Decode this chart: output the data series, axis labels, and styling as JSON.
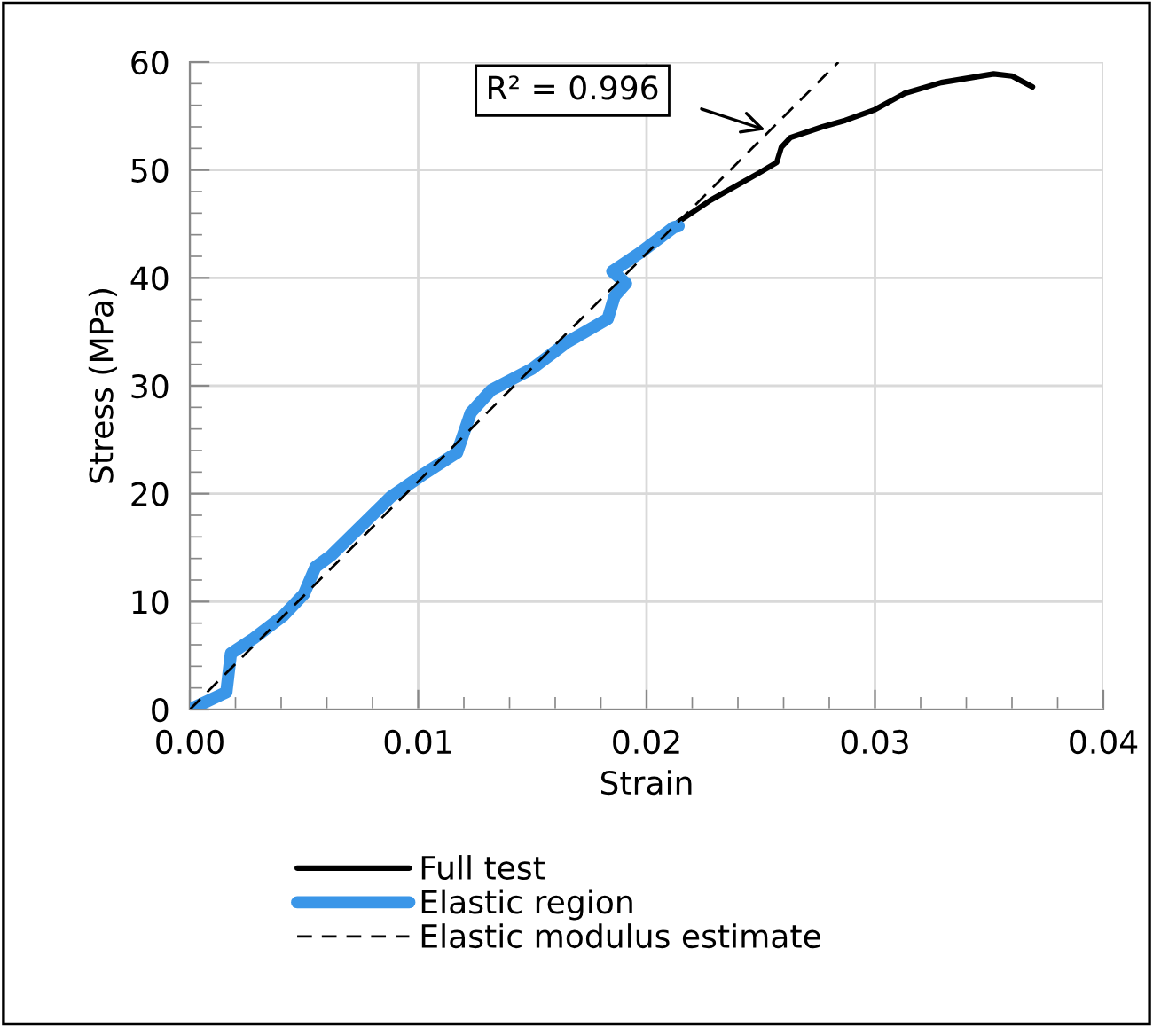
{
  "chart_data": {
    "type": "line",
    "xlabel": "Strain",
    "ylabel": "Stress (MPa)",
    "xlim": [
      0,
      0.04
    ],
    "ylim": [
      0,
      60
    ],
    "xticks": [
      {
        "value": 0,
        "label": "0.00"
      },
      {
        "value": 0.01,
        "label": "0.01"
      },
      {
        "value": 0.02,
        "label": "0.02"
      },
      {
        "value": 0.03,
        "label": "0.03"
      },
      {
        "value": 0.04,
        "label": "0.04"
      }
    ],
    "yticks": [
      0,
      10,
      20,
      30,
      40,
      50,
      60
    ],
    "grid": true,
    "legend": "bottom",
    "marker": "none",
    "series": [
      {
        "name": "Full test",
        "color": "#000000",
        "line_style": "solid",
        "x": [
          0.0212,
          0.0214,
          0.0228,
          0.0249,
          0.0257,
          0.0259,
          0.0263,
          0.0277,
          0.0287,
          0.03,
          0.0313,
          0.0329,
          0.0352,
          0.036,
          0.0369
        ],
        "values": [
          44.7,
          45.2,
          47.2,
          49.7,
          50.7,
          52.1,
          53.0,
          54.0,
          54.6,
          55.6,
          57.1,
          58.1,
          58.9,
          58.7,
          57.7
        ]
      },
      {
        "name": "Elastic region",
        "color": "#3a96e8",
        "line_style": "solid",
        "x": [
          0,
          0.0016,
          0.0018,
          0.0028,
          0.0041,
          0.005,
          0.0055,
          0.0062,
          0.0088,
          0.0103,
          0.0117,
          0.0123,
          0.0132,
          0.015,
          0.0165,
          0.0183,
          0.0186,
          0.0191,
          0.0185,
          0.0197,
          0.0212,
          0.0214
        ],
        "values": [
          0,
          1.6,
          5.2,
          6.6,
          8.7,
          10.7,
          13.2,
          14.3,
          19.7,
          21.9,
          23.8,
          27.5,
          29.6,
          31.6,
          34.0,
          36.2,
          38.3,
          39.5,
          40.6,
          42.3,
          44.7,
          44.8
        ]
      },
      {
        "name": "Elastic modulus estimate",
        "color": "#000000",
        "line_style": "dashed",
        "x": [
          0,
          0.0284
        ],
        "values": [
          0,
          60
        ]
      }
    ],
    "annotations": [
      "R² = 0.996"
    ]
  }
}
